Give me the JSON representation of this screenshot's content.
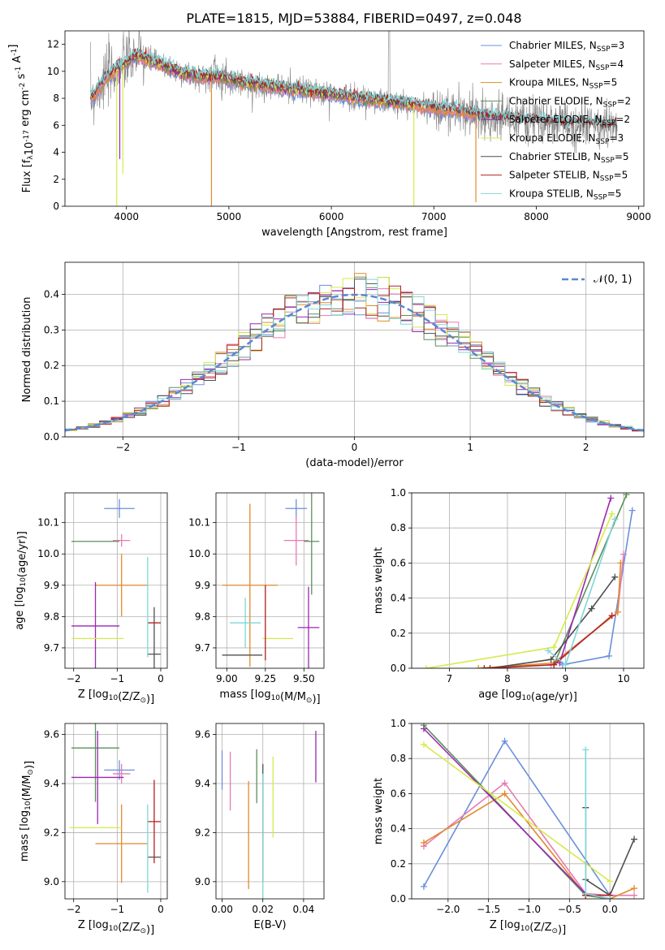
{
  "figure": {
    "title": "PLATE=1815, MJD=53884, FIBERID=0497, z=0.048"
  },
  "colors": {
    "Chabrier MILES": "#6b8fdc",
    "Salpeter MILES": "#e87ab2",
    "Kroupa MILES": "#e08a2c",
    "Chabrier ELODIE": "#5d8f5d",
    "Salpeter ELODIE": "#9b27b0",
    "Kroupa ELODIE": "#d6ea4a",
    "Chabrier STELIB": "#4f4f4f",
    "Salpeter STELIB": "#b22222",
    "Kroupa STELIB": "#7fd6d8",
    "data": "#808080",
    "gaussian": "#5b88d0"
  },
  "chart_data": [
    {
      "id": "spectrum",
      "type": "line",
      "xlabel": "wavelength [Angstrom, rest frame]",
      "ylabel": "Flux [f_λ10^-17 erg cm^-2 s^-1 A^-1]",
      "xlim": [
        3400,
        9050
      ],
      "ylim": [
        0,
        13
      ],
      "xticks": [
        4000,
        5000,
        6000,
        7000,
        8000,
        9000
      ],
      "yticks": [
        0,
        2,
        4,
        6,
        8,
        10,
        12
      ],
      "legend_position": "top-right",
      "continuum": {
        "x": [
          3650,
          3800,
          3950,
          4100,
          4300,
          4500,
          4700,
          4900,
          5200,
          5500,
          5800,
          6100,
          6400,
          6700,
          7000,
          7300,
          7500,
          7700,
          8000,
          8300,
          8600,
          8790
        ],
        "y": [
          7.9,
          9.5,
          10.4,
          11.2,
          10.6,
          10.0,
          9.6,
          9.6,
          9.1,
          8.8,
          8.5,
          8.2,
          7.9,
          7.6,
          7.3,
          7.0,
          6.7,
          6.5,
          6.3,
          6.1,
          6.0,
          5.9
        ]
      },
      "series": [
        {
          "name": "Chabrier MILES",
          "nssp": 3,
          "x_range": [
            3650,
            7420
          ]
        },
        {
          "name": "Salpeter MILES",
          "nssp": 4,
          "x_range": [
            3650,
            7420
          ]
        },
        {
          "name": "Kroupa MILES",
          "nssp": 5,
          "x_range": [
            3650,
            7420
          ]
        },
        {
          "name": "Chabrier ELODIE",
          "nssp": 2,
          "x_range": [
            3900,
            6800
          ]
        },
        {
          "name": "Salpeter ELODIE",
          "nssp": 2,
          "x_range": [
            3900,
            6800
          ]
        },
        {
          "name": "Kroupa ELODIE",
          "nssp": 3,
          "x_range": [
            3900,
            6800
          ]
        },
        {
          "name": "Chabrier STELIB",
          "nssp": 5,
          "x_range": [
            3650,
            8790
          ]
        },
        {
          "name": "Salpeter STELIB",
          "nssp": 5,
          "x_range": [
            3650,
            8790
          ]
        },
        {
          "name": "Kroupa STELIB",
          "nssp": 5,
          "x_range": [
            3650,
            8790
          ]
        }
      ]
    },
    {
      "id": "residuals",
      "type": "line",
      "xlabel": "(data-model)/error",
      "ylabel": "Normed distribution",
      "xlim": [
        -2.5,
        2.5
      ],
      "ylim": [
        0,
        0.49
      ],
      "xticks": [
        -2,
        -1,
        0,
        1,
        2
      ],
      "yticks": [
        0.0,
        0.1,
        0.2,
        0.3,
        0.4
      ],
      "grid": true,
      "legend_position": "top-right",
      "gaussian_label": "𝒩(0, 1)",
      "bin_width": 0.1
    },
    {
      "id": "age-vs-Z",
      "type": "scatter",
      "xlabel": "Z [log10(Z/Z⊙)]",
      "ylabel": "age  [log10(age/yr)]",
      "xlim": [
        -2.2,
        0.15
      ],
      "ylim": [
        9.635,
        10.195
      ],
      "xticks": [
        -2,
        -1,
        0
      ],
      "yticks": [
        9.7,
        9.8,
        9.9,
        10.0,
        10.1
      ],
      "grid": true,
      "points": [
        {
          "series": "Chabrier MILES",
          "x": -0.95,
          "xerr": 0.35,
          "y": 10.145,
          "yerr": 0.03
        },
        {
          "series": "Salpeter MILES",
          "x": -0.9,
          "xerr": 0.2,
          "y": 10.043,
          "yerr": 0.02
        },
        {
          "series": "Kroupa MILES",
          "x": -0.9,
          "xerr": 0.6,
          "y": 9.9,
          "yerr": 0.1
        },
        {
          "series": "Chabrier ELODIE",
          "x": -1.5,
          "xerr": 0.55,
          "y": 10.04,
          "yerr": 0.0
        },
        {
          "series": "Salpeter ELODIE",
          "x": -1.5,
          "xerr": 0.55,
          "y": 9.77,
          "yerr": 0.14
        },
        {
          "series": "Kroupa ELODIE",
          "x": -1.45,
          "xerr": 0.6,
          "y": 9.73,
          "yerr": 0.0
        },
        {
          "series": "Chabrier STELIB",
          "x": -0.15,
          "xerr": 0.15,
          "y": 9.68,
          "yerr": 0.15
        },
        {
          "series": "Salpeter STELIB",
          "x": -0.15,
          "xerr": 0.15,
          "y": 9.78,
          "yerr": 0.0
        },
        {
          "series": "Kroupa STELIB",
          "x": -0.3,
          "xerr": 0.0,
          "y": 9.83,
          "yerr": 0.16
        }
      ]
    },
    {
      "id": "age-vs-mass",
      "type": "scatter",
      "xlabel": "mass [log10(M/M⊙)]",
      "ylabel": "",
      "xlim": [
        8.93,
        9.63
      ],
      "ylim": [
        9.635,
        10.195
      ],
      "xticks": [
        9.0,
        9.25,
        9.5
      ],
      "yticks": [
        9.7,
        9.8,
        9.9,
        10.0,
        10.1
      ],
      "grid": true,
      "points": [
        {
          "series": "Chabrier MILES",
          "x": 9.45,
          "xerr": 0.07,
          "y": 10.145,
          "yerr": 0.03
        },
        {
          "series": "Salpeter MILES",
          "x": 9.45,
          "xerr": 0.08,
          "y": 10.043,
          "yerr": 0.08
        },
        {
          "series": "Kroupa MILES",
          "x": 9.15,
          "xerr": 0.18,
          "y": 9.9,
          "yerr": 0.26
        },
        {
          "series": "Chabrier ELODIE",
          "x": 9.55,
          "xerr": 0.05,
          "y": 10.04,
          "yerr": 0.17
        },
        {
          "series": "Salpeter ELODIE",
          "x": 9.53,
          "xerr": 0.07,
          "y": 9.765,
          "yerr": 0.13
        },
        {
          "series": "Kroupa ELODIE",
          "x": 9.33,
          "xerr": 0.1,
          "y": 9.73,
          "yerr": 0.0
        },
        {
          "series": "Chabrier STELIB",
          "x": 9.1,
          "xerr": 0.13,
          "y": 9.677,
          "yerr": 0.0
        },
        {
          "series": "Salpeter STELIB",
          "x": 9.25,
          "xerr": 0.0,
          "y": 9.78,
          "yerr": 0.12
        },
        {
          "series": "Kroupa STELIB",
          "x": 9.12,
          "xerr": 0.1,
          "y": 9.78,
          "yerr": 0.08
        }
      ]
    },
    {
      "id": "mass-weight-vs-age",
      "type": "line",
      "xlabel": "age  [log10(age/yr)]",
      "ylabel": "mass weight",
      "xlim": [
        6.35,
        10.35
      ],
      "ylim": [
        0,
        1
      ],
      "xticks": [
        7,
        8,
        9,
        10
      ],
      "yticks": [
        0.0,
        0.2,
        0.4,
        0.6,
        0.8,
        1.0
      ],
      "grid": true,
      "series": [
        {
          "name": "Chabrier MILES",
          "x": [
            8.95,
            9.75,
            10.15
          ],
          "y": [
            0.02,
            0.07,
            0.9
          ]
        },
        {
          "name": "Salpeter MILES",
          "x": [
            8.75,
            9.9,
            10.0
          ],
          "y": [
            0.02,
            0.32,
            0.65
          ]
        },
        {
          "name": "Kroupa MILES",
          "x": [
            7.5,
            8.8,
            9.9,
            9.95
          ],
          "y": [
            0.0,
            0.03,
            0.32,
            0.6
          ]
        },
        {
          "name": "Chabrier ELODIE",
          "x": [
            8.8,
            10.05
          ],
          "y": [
            0.02,
            0.99
          ]
        },
        {
          "name": "Salpeter ELODIE",
          "x": [
            8.9,
            9.78
          ],
          "y": [
            0.03,
            0.97
          ]
        },
        {
          "name": "Kroupa ELODIE",
          "x": [
            6.6,
            8.8,
            9.8
          ],
          "y": [
            0.0,
            0.12,
            0.88
          ]
        },
        {
          "name": "Chabrier STELIB",
          "x": [
            7.7,
            8.75,
            9.45,
            9.85
          ],
          "y": [
            0.0,
            0.05,
            0.34,
            0.52
          ]
        },
        {
          "name": "Salpeter STELIB",
          "x": [
            7.6,
            8.8,
            9.8
          ],
          "y": [
            0.0,
            0.02,
            0.3
          ]
        },
        {
          "name": "Kroupa STELIB",
          "x": [
            8.7,
            9.0,
            9.85
          ],
          "y": [
            0.1,
            0.02,
            0.85
          ]
        }
      ]
    },
    {
      "id": "mass-vs-Z",
      "type": "scatter",
      "xlabel": "Z [log10(Z/Z⊙)]",
      "ylabel": "mass [log10(M/M⊙)]",
      "xlim": [
        -2.2,
        0.15
      ],
      "ylim": [
        8.93,
        9.645
      ],
      "xticks": [
        -2,
        -1,
        0
      ],
      "yticks": [
        9.0,
        9.2,
        9.4,
        9.6
      ],
      "grid": true,
      "points": [
        {
          "series": "Chabrier MILES",
          "x": -0.95,
          "xerr": 0.35,
          "y": 9.455,
          "yerr": 0.04
        },
        {
          "series": "Salpeter MILES",
          "x": -0.9,
          "xerr": 0.2,
          "y": 9.44,
          "yerr": 0.04
        },
        {
          "series": "Kroupa MILES",
          "x": -0.9,
          "xerr": 0.6,
          "y": 9.155,
          "yerr": 0.16
        },
        {
          "series": "Chabrier ELODIE",
          "x": -1.5,
          "xerr": 0.55,
          "y": 9.545,
          "yerr": 0.22
        },
        {
          "series": "Salpeter ELODIE",
          "x": -1.45,
          "xerr": 0.6,
          "y": 9.425,
          "yerr": 0.19
        },
        {
          "series": "Kroupa ELODIE",
          "x": -1.5,
          "xerr": 0.6,
          "y": 9.22,
          "yerr": 0.0
        },
        {
          "series": "Chabrier STELIB",
          "x": -0.15,
          "xerr": 0.15,
          "y": 9.1,
          "yerr": 0.0
        },
        {
          "series": "Salpeter STELIB",
          "x": -0.15,
          "xerr": 0.15,
          "y": 9.245,
          "yerr": 0.17
        },
        {
          "series": "Kroupa STELIB",
          "x": -0.3,
          "xerr": 0.0,
          "y": 9.135,
          "yerr": 0.18
        }
      ]
    },
    {
      "id": "mass-vs-ebv",
      "type": "scatter",
      "xlabel": "E(B-V)",
      "ylabel": "",
      "xlim": [
        -0.003,
        0.05
      ],
      "ylim": [
        8.93,
        9.645
      ],
      "xticks": [
        0.0,
        0.02,
        0.04
      ],
      "yticks": [
        9.0,
        9.2,
        9.4,
        9.6
      ],
      "grid": true,
      "points": [
        {
          "series": "Chabrier MILES",
          "x": 0.0,
          "yerr": 0.08,
          "y": 9.455
        },
        {
          "series": "Salpeter MILES",
          "x": 0.004,
          "yerr": 0.12,
          "y": 9.41
        },
        {
          "series": "Kroupa MILES",
          "x": 0.013,
          "yerr": 0.22,
          "y": 9.19
        },
        {
          "series": "Chabrier ELODIE",
          "x": 0.017,
          "yerr": 0.11,
          "y": 9.43
        },
        {
          "series": "Salpeter ELODIE",
          "x": 0.046,
          "yerr": 0.105,
          "y": 9.51
        },
        {
          "series": "Kroupa ELODIE",
          "x": 0.025,
          "yerr": 0.165,
          "y": 9.345
        },
        {
          "series": "Chabrier STELIB",
          "x": 0.02,
          "yerr": 0.07,
          "y": 9.41
        },
        {
          "series": "Salpeter STELIB",
          "x": 0.02,
          "yerr": 0.18,
          "y": 9.18
        },
        {
          "series": "Kroupa STELIB",
          "x": 0.02,
          "yerr": 0.27,
          "y": 9.17
        }
      ]
    },
    {
      "id": "mass-weight-vs-Z",
      "type": "line",
      "xlabel": "Z [log10(Z/Z⊙)]",
      "ylabel": "mass weight",
      "xlim": [
        -2.45,
        0.42
      ],
      "ylim": [
        0,
        1
      ],
      "xticks": [
        -2.0,
        -1.5,
        -1.0,
        -0.5,
        0.0
      ],
      "yticks": [
        0.0,
        0.2,
        0.4,
        0.6,
        0.8,
        1.0
      ],
      "grid": true,
      "series": [
        {
          "name": "Chabrier MILES",
          "x": [
            -2.3,
            -1.3,
            0.0
          ],
          "y": [
            0.07,
            0.9,
            0.02
          ]
        },
        {
          "name": "Salpeter MILES",
          "x": [
            -2.3,
            -1.3,
            -0.3,
            0.0,
            0.3
          ],
          "y": [
            0.3,
            0.66,
            0.03,
            0.02,
            0.02
          ]
        },
        {
          "name": "Kroupa MILES",
          "x": [
            -2.3,
            -1.3,
            -0.3,
            0.0,
            0.3
          ],
          "y": [
            0.32,
            0.6,
            0.02,
            0.0,
            0.06
          ]
        },
        {
          "name": "Chabrier ELODIE",
          "x": [
            -2.3,
            -0.3,
            0.0
          ],
          "y": [
            0.99,
            0.02,
            0.0
          ]
        },
        {
          "name": "Salpeter ELODIE",
          "x": [
            -2.3,
            -0.3,
            0.0
          ],
          "y": [
            0.97,
            0.03,
            0.0
          ]
        },
        {
          "name": "Kroupa ELODIE",
          "x": [
            -2.3,
            0.0
          ],
          "y": [
            0.88,
            0.1
          ]
        },
        {
          "name": "Chabrier STELIB",
          "x": [
            -0.3,
            -0.3,
            0.0,
            0.3
          ],
          "y": [
            0.52,
            0.11,
            0.02,
            0.34
          ]
        },
        {
          "name": "Salpeter STELIB",
          "x": [
            -0.3,
            -0.3,
            0.0
          ],
          "y": [
            0.02,
            0.02,
            0.02
          ]
        },
        {
          "name": "Kroupa STELIB",
          "x": [
            -0.3,
            -0.3,
            0.0
          ],
          "y": [
            0.85,
            0.03,
            0.0
          ]
        }
      ]
    }
  ]
}
